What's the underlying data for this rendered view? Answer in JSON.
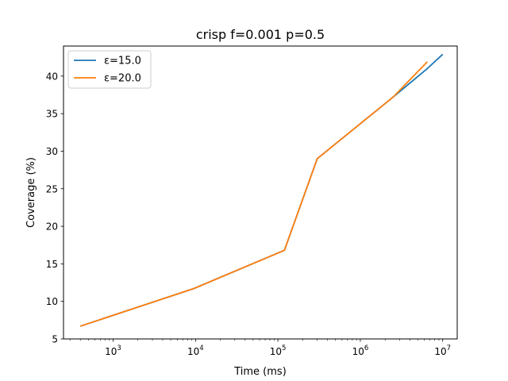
{
  "chart_data": {
    "type": "line",
    "title": "crisp f=0.001 p=0.5",
    "xlabel": "Time (ms)",
    "ylabel": "Coverage (%)",
    "xscale": "log",
    "xlim": [
      250,
      15000000
    ],
    "ylim": [
      5,
      44
    ],
    "x_ticks": [
      {
        "value": 1000,
        "base": "10",
        "exp": "3"
      },
      {
        "value": 10000,
        "base": "10",
        "exp": "4"
      },
      {
        "value": 100000,
        "base": "10",
        "exp": "5"
      },
      {
        "value": 1000000,
        "base": "10",
        "exp": "6"
      },
      {
        "value": 10000000,
        "base": "10",
        "exp": "7"
      }
    ],
    "y_ticks": [
      5,
      10,
      15,
      20,
      25,
      30,
      35,
      40
    ],
    "grid": false,
    "legend": {
      "location": "upper left"
    },
    "series": [
      {
        "name": "ε=15.0",
        "color": "#1f77b4",
        "points": [
          [
            400,
            6.7
          ],
          [
            9500,
            11.7
          ],
          [
            120000,
            16.8
          ],
          [
            300000,
            29.0
          ],
          [
            2500000,
            37.2
          ],
          [
            6500000,
            41.0
          ],
          [
            10000000,
            42.9
          ]
        ]
      },
      {
        "name": "ε=20.0",
        "color": "#ff7f0e",
        "points": [
          [
            400,
            6.7
          ],
          [
            9500,
            11.7
          ],
          [
            120000,
            16.8
          ],
          [
            300000,
            29.0
          ],
          [
            2500000,
            37.2
          ],
          [
            6500000,
            41.9
          ]
        ]
      }
    ]
  }
}
